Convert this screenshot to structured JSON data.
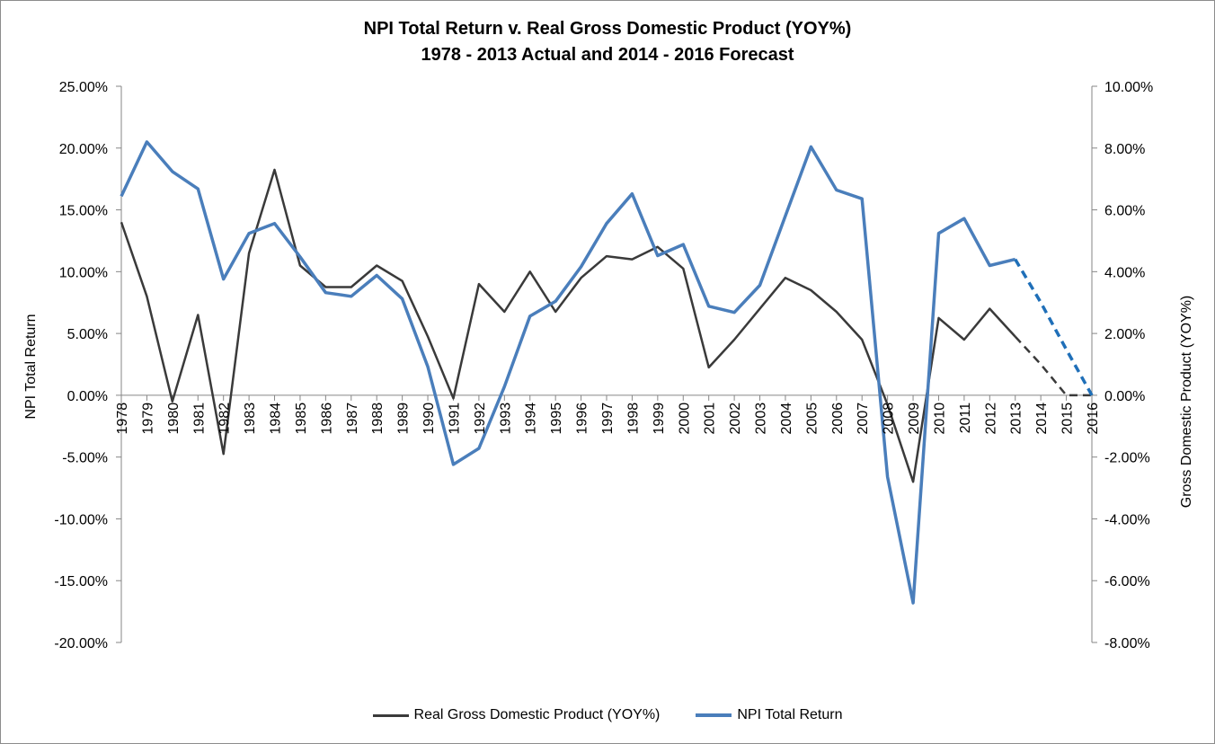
{
  "chart_data": {
    "type": "line",
    "title": "NPI Total Return v. Real Gross Domestic Product (YOY%)",
    "subtitle": "1978 - 2013 Actual and 2014 - 2016 Forecast",
    "x": [
      "1978",
      "1979",
      "1980",
      "1981",
      "1982",
      "1983",
      "1984",
      "1985",
      "1986",
      "1987",
      "1988",
      "1989",
      "1990",
      "1991",
      "1992",
      "1993",
      "1994",
      "1995",
      "1996",
      "1997",
      "1998",
      "1999",
      "2000",
      "2001",
      "2002",
      "2003",
      "2004",
      "2005",
      "2006",
      "2007",
      "2008",
      "2009",
      "2010",
      "2011",
      "2012",
      "2013",
      "2014",
      "2015",
      "2016"
    ],
    "forecast_start": "2013",
    "y_left": {
      "label": "NPI Total Return",
      "range": [
        -0.2,
        0.25
      ],
      "ticks": [
        -0.2,
        -0.15,
        -0.1,
        -0.05,
        0.0,
        0.05,
        0.1,
        0.15,
        0.2,
        0.25
      ],
      "tick_labels": [
        "-20.00%",
        "-15.00%",
        "-10.00%",
        "-5.00%",
        "0.00%",
        "5.00%",
        "10.00%",
        "15.00%",
        "20.00%",
        "25.00%"
      ]
    },
    "y_right": {
      "label": "Gross Domestic Product (YOY%)",
      "range": [
        -0.08,
        0.1
      ],
      "ticks": [
        -0.08,
        -0.06,
        -0.04,
        -0.02,
        0.0,
        0.02,
        0.04,
        0.06,
        0.08,
        0.1
      ],
      "tick_labels": [
        "-8.00%",
        "-6.00%",
        "-4.00%",
        "-2.00%",
        "0.00%",
        "2.00%",
        "4.00%",
        "6.00%",
        "8.00%",
        "10.00%"
      ]
    },
    "series": [
      {
        "name": "Real Gross Domestic Product (YOY%)",
        "axis": "right",
        "color": "#3a3a3a",
        "values": [
          0.056,
          0.032,
          -0.002,
          0.026,
          -0.019,
          0.046,
          0.073,
          0.042,
          0.035,
          0.035,
          0.042,
          0.037,
          0.019,
          -0.001,
          0.036,
          0.027,
          0.04,
          0.027,
          0.038,
          0.045,
          0.044,
          0.048,
          0.041,
          0.009,
          0.018,
          0.028,
          0.038,
          0.034,
          0.027,
          0.018,
          -0.003,
          -0.028,
          0.025,
          0.018,
          0.028,
          0.019,
          0.01,
          0.0,
          0.0
        ]
      },
      {
        "name": "NPI Total Return",
        "axis": "left",
        "color": "#4a7ebb",
        "values": [
          0.161,
          0.205,
          0.181,
          0.167,
          0.094,
          0.131,
          0.139,
          0.112,
          0.083,
          0.08,
          0.097,
          0.078,
          0.023,
          -0.056,
          -0.043,
          0.007,
          0.064,
          0.076,
          0.104,
          0.139,
          0.163,
          0.113,
          0.122,
          0.072,
          0.067,
          0.089,
          0.145,
          0.201,
          0.166,
          0.159,
          -0.066,
          -0.168,
          0.131,
          0.143,
          0.105,
          0.11,
          0.075,
          0.037,
          0.0
        ]
      }
    ],
    "legend_position": "bottom",
    "grid": false
  }
}
